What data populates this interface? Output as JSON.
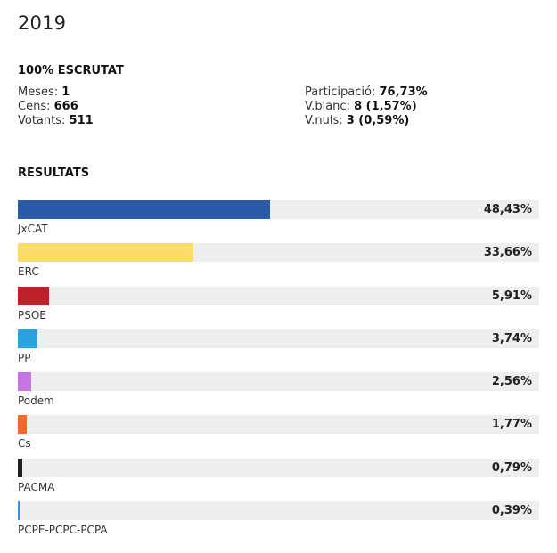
{
  "header": {
    "year": "2019",
    "scrutiny_title": "100% ESCRUTAT"
  },
  "stats": {
    "meses_label": "Meses:",
    "meses_value": "1",
    "cens_label": "Cens:",
    "cens_value": "666",
    "votants_label": "Votants:",
    "votants_value": "511",
    "participacio_label": "Participació:",
    "participacio_value": "76,73%",
    "vblanc_label": "V.blanc:",
    "vblanc_value": "8 (1,57%)",
    "vnuls_label": "V.nuls:",
    "vnuls_value": "3 (0,59%)"
  },
  "results_title": "RESULTATS",
  "chart_data": {
    "type": "bar",
    "orientation": "horizontal",
    "title": "RESULTATS",
    "xlim": [
      0,
      100
    ],
    "categories": [
      "JxCAT",
      "ERC",
      "PSOE",
      "PP",
      "Podem",
      "Cs",
      "PACMA",
      "PCPE-PCPC-PCPA"
    ],
    "values": [
      48.43,
      33.66,
      5.91,
      3.74,
      2.56,
      1.77,
      0.79,
      0.39
    ],
    "labels": [
      "48,43%",
      "33,66%",
      "5,91%",
      "3,74%",
      "2,56%",
      "1,77%",
      "0,79%",
      "0,39%"
    ],
    "colors": [
      "#2b5ba8",
      "#fbdc6b",
      "#c0202a",
      "#2ba2e0",
      "#c676e3",
      "#f06a2b",
      "#222222",
      "#3b8fd6"
    ]
  }
}
